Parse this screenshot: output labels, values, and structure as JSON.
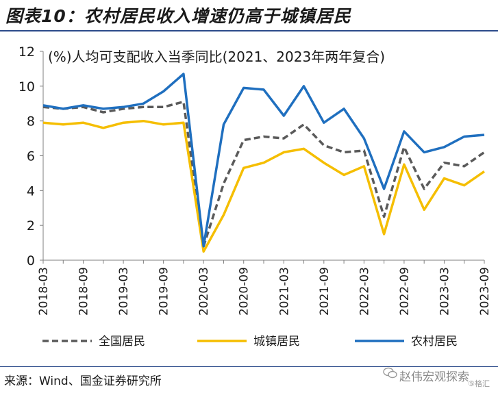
{
  "title": "图表10：农村居民收入增速仍高于城镇居民",
  "source": "来源：Wind、国金证券研究所",
  "watermark": {
    "text": "赵伟宏观探索",
    "sub": "⑤格汇",
    "icon": "wechat-icon"
  },
  "colors": {
    "national": "#5a5a5a",
    "urban": "#f5be00",
    "rural": "#1f6fbf",
    "rule": "#2b4a8a"
  },
  "chart_data": {
    "type": "line",
    "annotation": "(%)人均可支配收入当季同比(2021、2023年两年复合)",
    "ylim": [
      0,
      12
    ],
    "yticks": [
      0,
      2,
      4,
      6,
      8,
      10,
      12
    ],
    "x": [
      "2018-03",
      "2018-06",
      "2018-09",
      "2018-12",
      "2019-03",
      "2019-06",
      "2019-09",
      "2019-12",
      "2020-03",
      "2020-06",
      "2020-09",
      "2020-12",
      "2021-03",
      "2021-06",
      "2021-09",
      "2021-12",
      "2022-03",
      "2022-06",
      "2022-09",
      "2022-12",
      "2023-03",
      "2023-06",
      "2023-09"
    ],
    "xtick_labels": [
      "2018-03",
      "2018-09",
      "2019-03",
      "2019-09",
      "2020-03",
      "2020-09",
      "2021-03",
      "2021-09",
      "2022-03",
      "2022-09",
      "2023-03",
      "2023-09"
    ],
    "series": [
      {
        "name": "全国居民",
        "style": "dashed",
        "values": [
          8.8,
          8.7,
          8.8,
          8.5,
          8.7,
          8.8,
          8.8,
          9.1,
          0.8,
          4.4,
          6.9,
          7.1,
          7.0,
          7.8,
          6.6,
          6.2,
          6.3,
          2.5,
          6.5,
          4.1,
          5.6,
          5.4,
          6.2
        ]
      },
      {
        "name": "城镇居民",
        "style": "solid",
        "values": [
          7.9,
          7.8,
          7.9,
          7.6,
          7.9,
          8.0,
          7.8,
          7.9,
          0.5,
          2.6,
          5.3,
          5.6,
          6.2,
          6.4,
          5.6,
          4.9,
          5.4,
          1.5,
          5.5,
          2.9,
          4.7,
          4.3,
          5.1
        ]
      },
      {
        "name": "农村居民",
        "style": "solid",
        "values": [
          8.9,
          8.7,
          8.9,
          8.7,
          8.8,
          9.0,
          9.7,
          10.7,
          0.8,
          7.8,
          9.9,
          9.8,
          8.3,
          10.0,
          7.9,
          8.7,
          7.0,
          4.1,
          7.4,
          6.2,
          6.5,
          7.1,
          7.2
        ]
      }
    ],
    "legend": [
      "全国居民",
      "城镇居民",
      "农村居民"
    ],
    "legend_position": "bottom",
    "grid": false
  }
}
